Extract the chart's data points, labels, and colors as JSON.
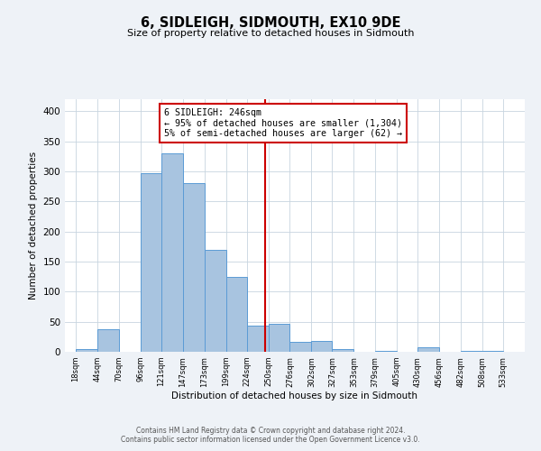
{
  "title": "6, SIDLEIGH, SIDMOUTH, EX10 9DE",
  "subtitle": "Size of property relative to detached houses in Sidmouth",
  "xlabel": "Distribution of detached houses by size in Sidmouth",
  "ylabel": "Number of detached properties",
  "footer_line1": "Contains HM Land Registry data © Crown copyright and database right 2024.",
  "footer_line2": "Contains public sector information licensed under the Open Government Licence v3.0.",
  "annotation_title": "6 SIDLEIGH: 246sqm",
  "annotation_line1": "← 95% of detached houses are smaller (1,304)",
  "annotation_line2": "5% of semi-detached houses are larger (62) →",
  "bar_left_edges": [
    18,
    44,
    70,
    96,
    121,
    147,
    173,
    199,
    224,
    250,
    276,
    302,
    327,
    353,
    379,
    405,
    430,
    456,
    482,
    508
  ],
  "bar_widths": [
    26,
    26,
    26,
    25,
    26,
    26,
    26,
    25,
    26,
    26,
    26,
    25,
    26,
    26,
    26,
    25,
    26,
    26,
    26,
    25
  ],
  "bar_heights": [
    4,
    37,
    0,
    297,
    330,
    280,
    170,
    124,
    44,
    46,
    17,
    18,
    5,
    0,
    1,
    0,
    7,
    0,
    1,
    2
  ],
  "bar_color": "#a8c4e0",
  "bar_edge_color": "#5b9bd5",
  "vline_x": 246,
  "vline_color": "#cc0000",
  "annotation_box_color": "#cc0000",
  "ylim": [
    0,
    420
  ],
  "yticks": [
    0,
    50,
    100,
    150,
    200,
    250,
    300,
    350,
    400
  ],
  "xtick_labels": [
    "18sqm",
    "44sqm",
    "70sqm",
    "96sqm",
    "121sqm",
    "147sqm",
    "173sqm",
    "199sqm",
    "224sqm",
    "250sqm",
    "276sqm",
    "302sqm",
    "327sqm",
    "353sqm",
    "379sqm",
    "405sqm",
    "430sqm",
    "456sqm",
    "482sqm",
    "508sqm",
    "533sqm"
  ],
  "bg_color": "#eef2f7",
  "plot_bg_color": "#ffffff",
  "xlim_left": 5,
  "xlim_right": 559
}
